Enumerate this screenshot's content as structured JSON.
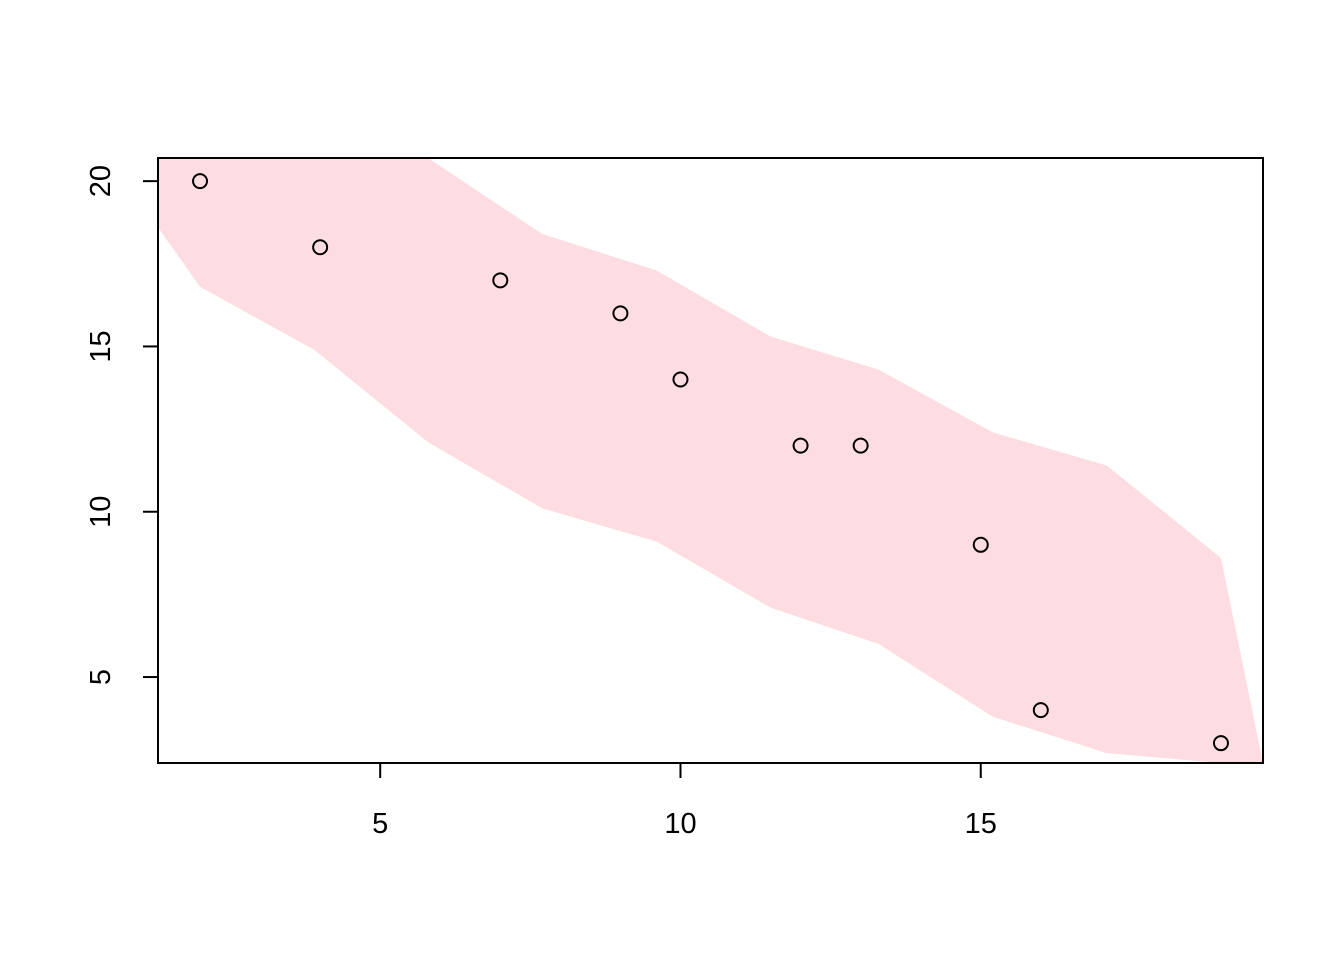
{
  "chart_data": {
    "type": "scatter",
    "title": "",
    "xlabel": "",
    "ylabel": "",
    "xlim": [
      1.3,
      19.7
    ],
    "ylim": [
      2.4,
      20.7
    ],
    "xticks": [
      5,
      10,
      15
    ],
    "yticks": [
      5,
      10,
      15,
      20
    ],
    "x": [
      2,
      4,
      7,
      9,
      10,
      12,
      13,
      15,
      16,
      19
    ],
    "y": [
      20,
      18,
      17,
      16,
      14,
      12,
      12,
      9,
      4,
      3
    ],
    "band": {
      "x": [
        1.3,
        2.0,
        3.9,
        5.8,
        7.7,
        9.6,
        11.5,
        13.3,
        15.2,
        17.1,
        19.0,
        19.7
      ],
      "upper": [
        20.7,
        20.7,
        20.7,
        20.7,
        18.4,
        17.3,
        15.3,
        14.3,
        12.4,
        11.4,
        8.6,
        2.4
      ],
      "lower": [
        18.6,
        16.8,
        14.9,
        12.1,
        10.1,
        9.1,
        7.1,
        6.0,
        3.8,
        2.7,
        2.4,
        2.4
      ]
    },
    "grid": false,
    "legend": "none",
    "colors": {
      "band": "#fddde2",
      "points": "#000000",
      "axes": "#000000"
    }
  }
}
